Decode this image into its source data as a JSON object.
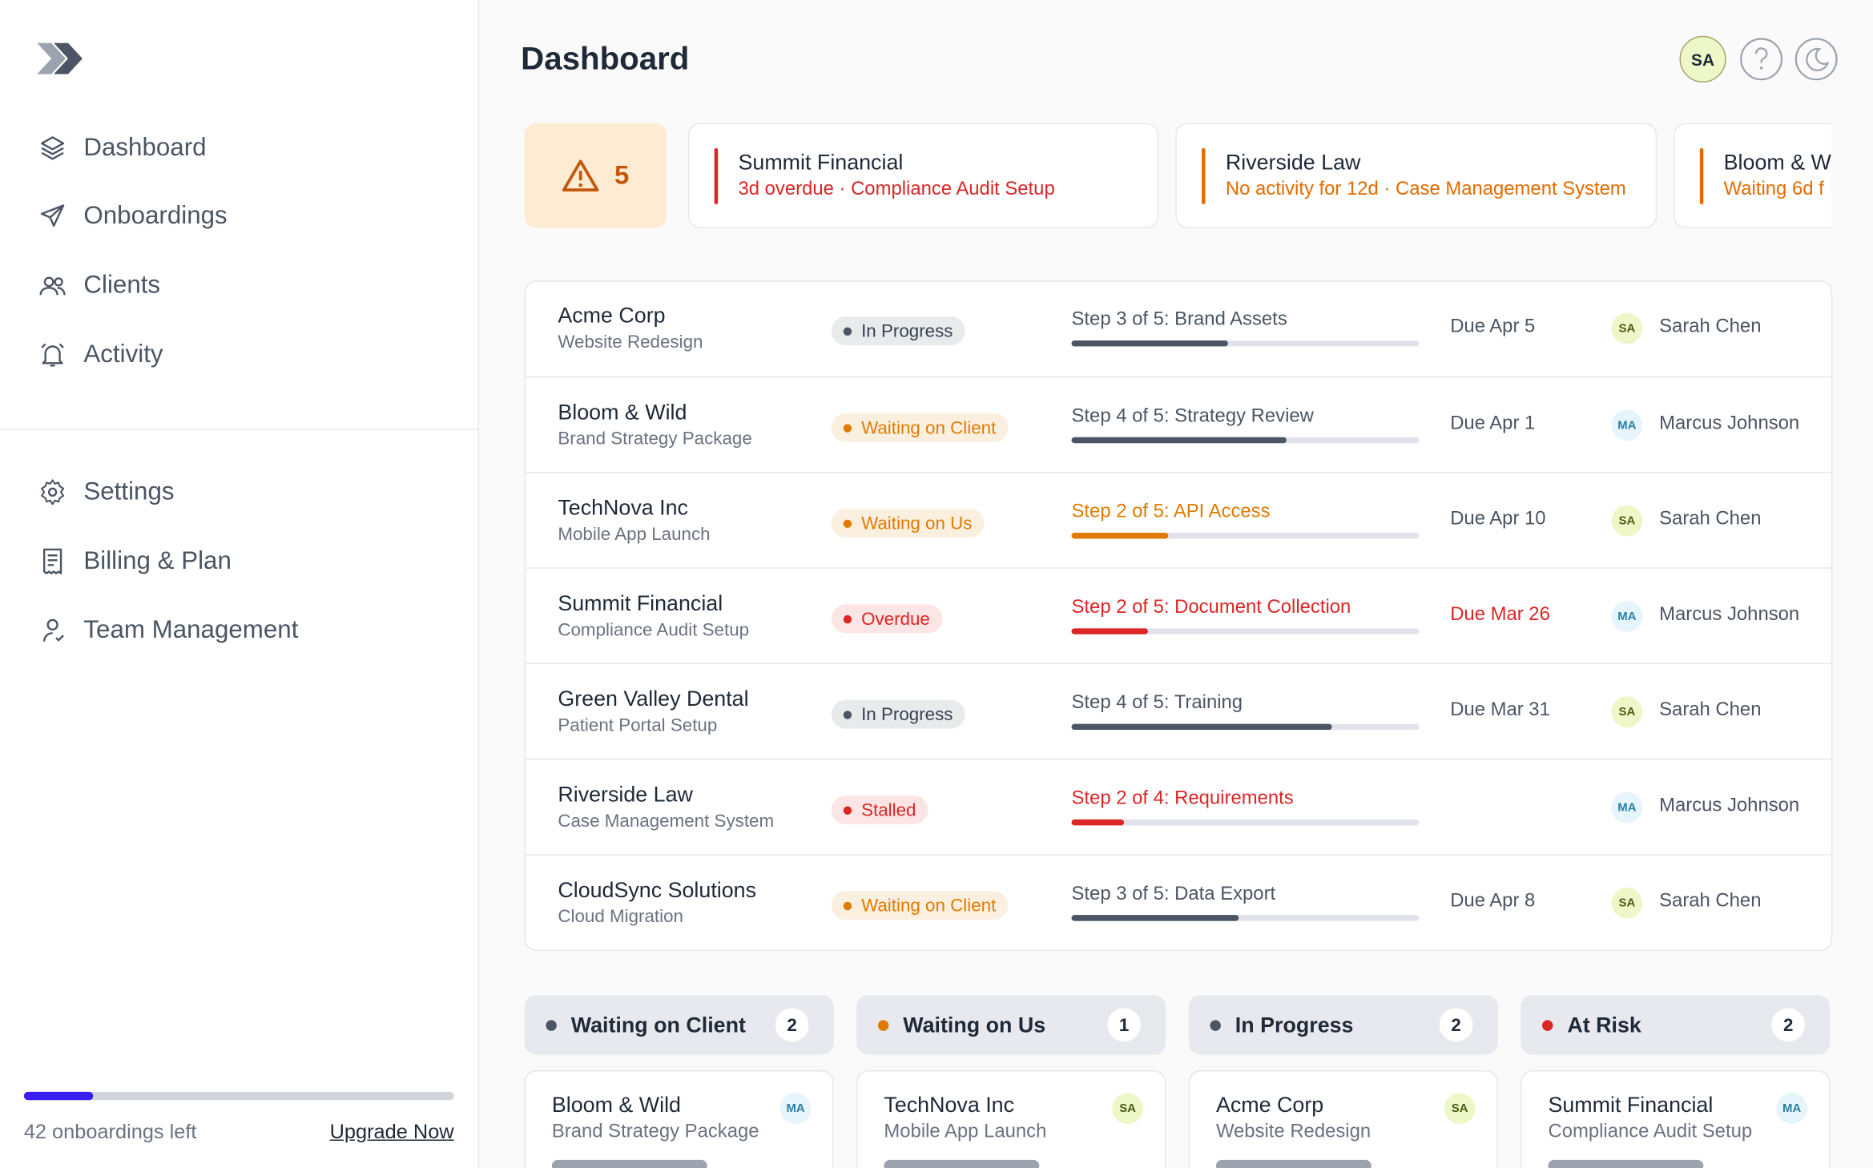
{
  "sidebar": {
    "nav": [
      "Dashboard",
      "Onboardings",
      "Clients",
      "Activity"
    ],
    "secondary": [
      "Settings",
      "Billing & Plan",
      "Team Management"
    ],
    "usage_text": "42 onboardings left",
    "usage_progress": 16,
    "upgrade": "Upgrade Now"
  },
  "header": {
    "title": "Dashboard",
    "user_initials": "SA"
  },
  "alerts": {
    "count": 5,
    "items": [
      {
        "name": "Summit Financial",
        "detail": "3d overdue · Compliance Audit Setup",
        "color": "#dc2626"
      },
      {
        "name": "Riverside Law",
        "detail": "No activity for 12d · Case Management System",
        "color": "#e56b00"
      },
      {
        "name": "Bloom & Wild",
        "detail": "Waiting 6d f",
        "color": "#e56b00"
      }
    ]
  },
  "table": {
    "rows": [
      {
        "name": "Acme Corp",
        "project": "Website Redesign",
        "status": "In Progress",
        "status_color": "#4b5563",
        "step": "Step 3 of 5: Brand Assets",
        "step_color": "#4b5563",
        "progress": 45,
        "progress_color": "#4b5563",
        "due": "Due Apr 5",
        "due_color": "#4b5563",
        "initials": "SA",
        "owner": "Sarah Chen"
      },
      {
        "name": "Bloom & Wild",
        "project": "Brand Strategy Package",
        "status": "Waiting on Client",
        "status_color": "#e07b00",
        "step": "Step 4 of 5: Strategy Review",
        "step_color": "#4b5563",
        "progress": 62,
        "progress_color": "#4b5563",
        "due": "Due Apr 1",
        "due_color": "#4b5563",
        "initials": "MA",
        "owner": "Marcus Johnson"
      },
      {
        "name": "TechNova Inc",
        "project": "Mobile App Launch",
        "status": "Waiting on Us",
        "status_color": "#e07b00",
        "step": "Step 2 of 5: API Access",
        "step_color": "#e07b00",
        "progress": 28,
        "progress_color": "#e07b00",
        "due": "Due Apr 10",
        "due_color": "#4b5563",
        "initials": "SA",
        "owner": "Sarah Chen"
      },
      {
        "name": "Summit Financial",
        "project": "Compliance Audit Setup",
        "status": "Overdue",
        "status_color": "#dc2626",
        "step": "Step 2 of 5: Document Collection",
        "step_color": "#dc2626",
        "progress": 22,
        "progress_color": "#dc2626",
        "due": "Due Mar 26",
        "due_color": "#dc2626",
        "initials": "MA",
        "owner": "Marcus Johnson"
      },
      {
        "name": "Green Valley Dental",
        "project": "Patient Portal Setup",
        "status": "In Progress",
        "status_color": "#4b5563",
        "step": "Step 4 of 5: Training",
        "step_color": "#4b5563",
        "progress": 75,
        "progress_color": "#4b5563",
        "due": "Due Mar 31",
        "due_color": "#4b5563",
        "initials": "SA",
        "owner": "Sarah Chen"
      },
      {
        "name": "Riverside Law",
        "project": "Case Management System",
        "status": "Stalled",
        "status_color": "#dc2626",
        "step": "Step 2 of 4: Requirements",
        "step_color": "#dc2626",
        "progress": 15,
        "progress_color": "#dc2626",
        "due": null,
        "due_color": "#4b5563",
        "initials": "MA",
        "owner": "Marcus Johnson"
      },
      {
        "name": "CloudSync Solutions",
        "project": "Cloud Migration",
        "status": "Waiting on Client",
        "status_color": "#e07b00",
        "step": "Step 3 of 5: Data Export",
        "step_color": "#4b5563",
        "progress": 48,
        "progress_color": "#4b5563",
        "due": "Due Apr 8",
        "due_color": "#4b5563",
        "initials": "SA",
        "owner": "Sarah Chen"
      }
    ]
  },
  "board": {
    "columns": [
      {
        "name": "Waiting on Client",
        "color": "#4b5563",
        "count": 2,
        "card": {
          "name": "Bloom & Wild",
          "project": "Brand Strategy Package",
          "initials": "MA"
        }
      },
      {
        "name": "Waiting on Us",
        "color": "#e07b00",
        "count": 1,
        "card": {
          "name": "TechNova Inc",
          "project": "Mobile App Launch",
          "initials": "SA"
        }
      },
      {
        "name": "In Progress",
        "color": "#4b5563",
        "count": 2,
        "card": {
          "name": "Acme Corp",
          "project": "Website Redesign",
          "initials": "SA"
        }
      },
      {
        "name": "At Risk",
        "color": "#dc2626",
        "count": 2,
        "card": {
          "name": "Summit Financial",
          "project": "Compliance Audit Setup",
          "initials": "MA"
        }
      }
    ]
  }
}
